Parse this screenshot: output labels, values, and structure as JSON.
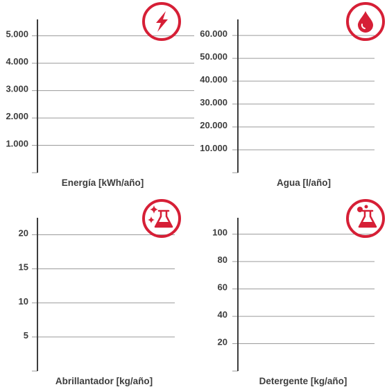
{
  "chart_data": [
    {
      "type": "bar",
      "xlabel": "Energía [kWh/año]",
      "ylabel": "",
      "ylim": [
        0,
        5600
      ],
      "yticks": [
        1000,
        2000,
        3000,
        4000,
        5000
      ],
      "ytick_labels": [
        "1.000",
        "2.000",
        "3.000",
        "4.000",
        "5.000"
      ],
      "grid": true,
      "categories": [],
      "series": [],
      "icon": "lightning-icon",
      "accent": "#d61f36"
    },
    {
      "type": "bar",
      "xlabel": "Agua [l/año]",
      "ylabel": "",
      "ylim": [
        0,
        67000
      ],
      "yticks": [
        10000,
        20000,
        30000,
        40000,
        50000,
        60000
      ],
      "ytick_labels": [
        "10.000",
        "20.000",
        "30.000",
        "40.000",
        "50.000",
        "60.000"
      ],
      "grid": true,
      "categories": [],
      "series": [],
      "icon": "water-drop-icon",
      "accent": "#d61f36"
    },
    {
      "type": "bar",
      "xlabel": "Abrillantador [kg/año]",
      "ylabel": "",
      "ylim": [
        0,
        22.5
      ],
      "yticks": [
        5,
        10,
        15,
        20
      ],
      "ytick_labels": [
        "5",
        "10",
        "15",
        "20"
      ],
      "grid": true,
      "categories": [],
      "series": [],
      "icon": "sparkle-flask-icon",
      "accent": "#d61f36"
    },
    {
      "type": "bar",
      "xlabel": "Detergente [kg/año]",
      "ylabel": "",
      "ylim": [
        0,
        112
      ],
      "yticks": [
        20,
        40,
        60,
        80,
        100
      ],
      "ytick_labels": [
        "20",
        "40",
        "60",
        "80",
        "100"
      ],
      "grid": true,
      "categories": [],
      "series": [],
      "icon": "bubbles-flask-icon",
      "accent": "#d61f36"
    }
  ]
}
